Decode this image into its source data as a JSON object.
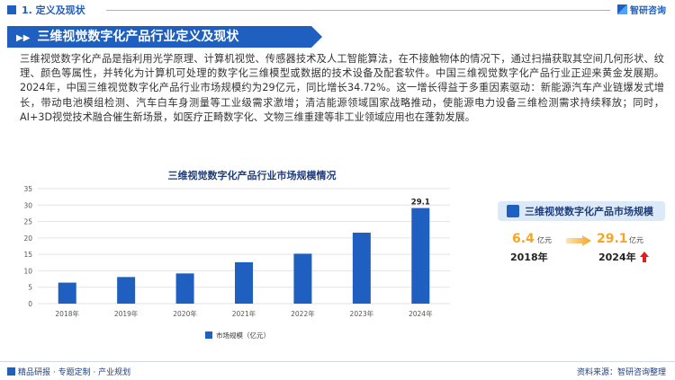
{
  "header": {
    "section_title": "1. 定义及现状",
    "logo_text": "智研咨询"
  },
  "banner": {
    "title": "三维视觉数字化产品行业定义及现状"
  },
  "body_text": "三维视觉数字化产品是指利用光学原理、计算机视觉、传感器技术及人工智能算法，在不接触物体的情况下，通过扫描获取其空间几何形状、纹理、颜色等属性，并转化为计算机可处理的数字化三维模型或数据的技术设备及配套软件。中国三维视觉数字化产品行业正迎来黄金发展期。2024年，中国三维视觉数字化产品行业市场规模约为29亿元，同比增长34.72%。这一增长得益于多重因素驱动：新能源汽车产业链爆发式增长，带动电池模组检测、汽车白车身测量等工业级需求激增；清洁能源领域国家战略推动，使能源电力设备三维检测需求持续释放；同时，AI+3D视觉技术融合催生新场景，如医疗正畸数字化、文物三维重建等非工业领域应用也在蓬勃发展。",
  "chart_data": {
    "type": "bar",
    "title": "三维视觉数字化产品行业市场规模情况",
    "categories": [
      "2018年",
      "2019年",
      "2020年",
      "2021年",
      "2022年",
      "2023年",
      "2024年"
    ],
    "series": [
      {
        "name": "市场规模（亿元）",
        "values": [
          6.4,
          8.1,
          9.2,
          12.6,
          15.2,
          21.6,
          29.1
        ]
      }
    ],
    "data_labels": {
      "2024年": "29.1"
    },
    "ylim": [
      0,
      35
    ],
    "yticks": [
      0,
      5,
      10,
      15,
      20,
      25,
      30,
      35
    ],
    "grid": true,
    "legend": "bottom",
    "colors": {
      "bar": "#1f5fbf"
    }
  },
  "side_card": {
    "title": "三维视觉数字化产品市场规模",
    "left_value": "6.4",
    "left_unit": "亿元",
    "left_year": "2018年",
    "right_value": "29.1",
    "right_unit": "亿元",
    "right_year": "2024年",
    "colors": {
      "value": "#f5a623",
      "up_arrow": "#e02020"
    },
    "icons": [
      "arrow-right-icon",
      "up-arrow-icon"
    ]
  },
  "footer": {
    "left": "精品研报 · 专题定制 · 产业规划",
    "right": "资料来源：智研咨询整理"
  }
}
